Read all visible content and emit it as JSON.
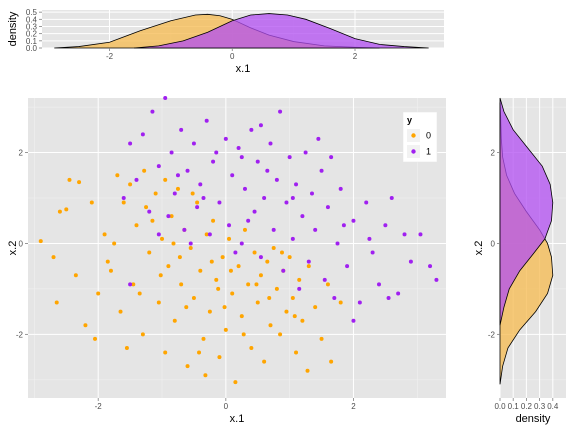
{
  "colors": {
    "panel_bg": "#e5e5e5",
    "grid_major": "#ffffff",
    "grid_minor": "#f2f2f2",
    "class0": "#ffa500",
    "class1": "#a020f0",
    "class0_fill": "#f5b94d",
    "class1_fill": "#b14ef2"
  },
  "chart_data": [
    {
      "id": "top-density",
      "type": "area",
      "xlabel": "x.1",
      "ylabel": "density",
      "xlim": [
        -3.1,
        3.45
      ],
      "ylim": [
        0,
        0.53
      ],
      "xticks": [
        -2,
        0,
        2
      ],
      "xtick_labels": [
        "-2",
        "0",
        "2"
      ],
      "yticks": [
        0.0,
        0.1,
        0.2,
        0.3,
        0.4,
        0.5
      ],
      "ytick_labels": [
        "0.0",
        "0.1",
        "0.2",
        "0.3",
        "0.4",
        "0.5"
      ],
      "series": [
        {
          "name": "0",
          "x": [
            -2.9,
            -2.5,
            -2.0,
            -1.5,
            -1.0,
            -0.6,
            -0.4,
            -0.2,
            0.0,
            0.3,
            0.6,
            1.0,
            1.5,
            2.0,
            2.4
          ],
          "density": [
            0.0,
            0.02,
            0.08,
            0.24,
            0.38,
            0.46,
            0.47,
            0.45,
            0.4,
            0.28,
            0.18,
            0.09,
            0.03,
            0.01,
            0.0
          ]
        },
        {
          "name": "1",
          "x": [
            -1.6,
            -1.2,
            -0.8,
            -0.4,
            0.0,
            0.3,
            0.6,
            0.9,
            1.2,
            1.6,
            2.0,
            2.4,
            2.8,
            3.2
          ],
          "density": [
            0.0,
            0.03,
            0.1,
            0.22,
            0.38,
            0.46,
            0.48,
            0.46,
            0.4,
            0.27,
            0.13,
            0.05,
            0.02,
            0.0
          ]
        }
      ]
    },
    {
      "id": "main-scatter",
      "type": "scatter",
      "xlabel": "x.1",
      "ylabel": "x.2",
      "xlim": [
        -3.1,
        3.45
      ],
      "ylim": [
        -3.4,
        3.2
      ],
      "xticks": [
        -2,
        0,
        2
      ],
      "xtick_labels": [
        "-2",
        "0",
        "2"
      ],
      "yticks": [
        -2,
        0,
        2
      ],
      "ytick_labels": [
        "-2",
        "0",
        "2"
      ],
      "legend": {
        "title": "y",
        "position": "top-right",
        "entries": [
          "0",
          "1"
        ]
      },
      "series": [
        {
          "name": "0",
          "points": [
            [
              -2.9,
              0.05
            ],
            [
              -2.7,
              -0.3
            ],
            [
              -2.65,
              -1.3
            ],
            [
              -2.6,
              0.7
            ],
            [
              -2.5,
              0.75
            ],
            [
              -2.45,
              1.4
            ],
            [
              -2.3,
              1.35
            ],
            [
              -2.2,
              -1.8
            ],
            [
              -2.1,
              0.9
            ],
            [
              -2.0,
              -1.1
            ],
            [
              -1.9,
              0.2
            ],
            [
              -1.8,
              -0.6
            ],
            [
              -1.7,
              1.5
            ],
            [
              -1.65,
              -1.5
            ],
            [
              -1.5,
              1.3
            ],
            [
              -1.45,
              -0.9
            ],
            [
              -1.4,
              0.4
            ],
            [
              -1.3,
              -2.0
            ],
            [
              -1.25,
              0.8
            ],
            [
              -1.2,
              -0.2
            ],
            [
              -1.1,
              1.1
            ],
            [
              -1.05,
              -1.3
            ],
            [
              -1.0,
              0.1
            ],
            [
              -0.95,
              -2.4
            ],
            [
              -0.9,
              -0.5
            ],
            [
              -0.85,
              0.6
            ],
            [
              -0.8,
              -1.7
            ],
            [
              -0.75,
              1.2
            ],
            [
              -0.7,
              -0.9
            ],
            [
              -0.65,
              0.3
            ],
            [
              -0.6,
              -2.7
            ],
            [
              -0.55,
              -0.1
            ],
            [
              -0.5,
              -1.2
            ],
            [
              -0.45,
              0.9
            ],
            [
              -0.4,
              -0.6
            ],
            [
              -0.35,
              -2.1
            ],
            [
              -0.3,
              0.2
            ],
            [
              -0.25,
              -1.5
            ],
            [
              -0.2,
              0.5
            ],
            [
              -0.15,
              -0.8
            ],
            [
              -0.1,
              -2.5
            ],
            [
              -0.05,
              -0.3
            ],
            [
              0.0,
              -1.9
            ],
            [
              0.05,
              0.1
            ],
            [
              0.1,
              -1.1
            ],
            [
              0.15,
              -3.05
            ],
            [
              0.2,
              -0.5
            ],
            [
              0.25,
              -1.6
            ],
            [
              0.3,
              0.3
            ],
            [
              0.35,
              -0.9
            ],
            [
              0.4,
              -2.3
            ],
            [
              0.45,
              -0.2
            ],
            [
              0.5,
              -1.3
            ],
            [
              0.55,
              -0.7
            ],
            [
              0.6,
              -2.6
            ],
            [
              0.65,
              -0.4
            ],
            [
              0.7,
              -1.8
            ],
            [
              0.75,
              -0.1
            ],
            [
              0.8,
              -1.0
            ],
            [
              0.85,
              -2.0
            ],
            [
              0.9,
              -0.6
            ],
            [
              0.95,
              -1.5
            ],
            [
              1.0,
              -0.3
            ],
            [
              1.05,
              -1.2
            ],
            [
              1.1,
              -2.4
            ],
            [
              1.15,
              -0.8
            ],
            [
              1.2,
              -1.7
            ],
            [
              1.3,
              -0.5
            ],
            [
              1.4,
              -1.4
            ],
            [
              1.5,
              -2.1
            ],
            [
              1.6,
              -0.9
            ],
            [
              1.65,
              -2.6
            ],
            [
              1.8,
              -1.3
            ],
            [
              -1.85,
              -0.4
            ],
            [
              -1.6,
              0.9
            ],
            [
              -1.35,
              -1.1
            ],
            [
              -1.15,
              0.5
            ],
            [
              -0.95,
              1.4
            ],
            [
              -0.72,
              -0.3
            ],
            [
              -0.52,
              1.1
            ],
            [
              -0.32,
              -2.9
            ],
            [
              -0.12,
              -1.0
            ],
            [
              0.08,
              -0.6
            ],
            [
              0.28,
              -2.0
            ],
            [
              0.48,
              -0.9
            ],
            [
              0.68,
              -1.2
            ],
            [
              0.88,
              -0.2
            ],
            [
              1.08,
              -1.6
            ],
            [
              1.28,
              -2.8
            ],
            [
              -2.35,
              -0.7
            ],
            [
              -2.05,
              -2.1
            ],
            [
              -1.75,
              0.0
            ],
            [
              -1.55,
              -2.3
            ],
            [
              -1.28,
              1.6
            ],
            [
              -1.02,
              -0.7
            ],
            [
              -0.82,
              0.0
            ],
            [
              -0.62,
              -1.4
            ],
            [
              -0.42,
              -2.4
            ],
            [
              -0.22,
              -0.4
            ],
            [
              -0.02,
              -1.4
            ]
          ]
        },
        {
          "name": "1",
          "points": [
            [
              -1.6,
              1.0
            ],
            [
              -1.5,
              2.2
            ],
            [
              -1.5,
              -0.9
            ],
            [
              -1.4,
              1.4
            ],
            [
              -1.3,
              2.4
            ],
            [
              -1.2,
              0.7
            ],
            [
              -1.15,
              2.9
            ],
            [
              -1.05,
              1.7
            ],
            [
              -0.95,
              3.2
            ],
            [
              -0.9,
              0.6
            ],
            [
              -0.85,
              2.0
            ],
            [
              -0.8,
              1.1
            ],
            [
              -0.7,
              2.5
            ],
            [
              -0.65,
              0.3
            ],
            [
              -0.6,
              1.6
            ],
            [
              -0.5,
              2.2
            ],
            [
              -0.45,
              0.8
            ],
            [
              -0.4,
              1.3
            ],
            [
              -0.3,
              2.7
            ],
            [
              -0.25,
              0.2
            ],
            [
              -0.2,
              1.8
            ],
            [
              -0.1,
              0.9
            ],
            [
              0.0,
              2.3
            ],
            [
              0.05,
              0.4
            ],
            [
              0.1,
              1.5
            ],
            [
              0.2,
              2.1
            ],
            [
              0.25,
              0.0
            ],
            [
              0.3,
              1.2
            ],
            [
              0.4,
              2.5
            ],
            [
              0.45,
              0.7
            ],
            [
              0.5,
              1.8
            ],
            [
              0.55,
              -0.3
            ],
            [
              0.6,
              1.0
            ],
            [
              0.7,
              2.2
            ],
            [
              0.75,
              0.3
            ],
            [
              0.8,
              1.4
            ],
            [
              0.85,
              2.9
            ],
            [
              0.9,
              -0.6
            ],
            [
              0.95,
              0.9
            ],
            [
              1.0,
              1.9
            ],
            [
              1.05,
              0.1
            ],
            [
              1.1,
              1.3
            ],
            [
              1.15,
              -1.0
            ],
            [
              1.2,
              0.6
            ],
            [
              1.25,
              2.0
            ],
            [
              1.3,
              -0.4
            ],
            [
              1.35,
              1.1
            ],
            [
              1.4,
              0.3
            ],
            [
              1.5,
              1.6
            ],
            [
              1.55,
              -0.8
            ],
            [
              1.6,
              0.8
            ],
            [
              1.7,
              -1.2
            ],
            [
              1.75,
              0.0
            ],
            [
              1.8,
              1.2
            ],
            [
              1.9,
              -0.5
            ],
            [
              2.0,
              0.5
            ],
            [
              2.1,
              -1.3
            ],
            [
              2.2,
              0.9
            ],
            [
              2.3,
              -0.2
            ],
            [
              2.4,
              -0.9
            ],
            [
              2.5,
              0.4
            ],
            [
              2.6,
              1.0
            ],
            [
              2.7,
              -1.1
            ],
            [
              2.8,
              0.2
            ],
            [
              2.9,
              -0.4
            ],
            [
              3.05,
              0.2
            ],
            [
              3.2,
              -0.5
            ],
            [
              3.3,
              -0.8
            ],
            [
              2.0,
              -1.7
            ],
            [
              2.55,
              -1.2
            ],
            [
              -1.05,
              0.2
            ],
            [
              -0.55,
              0.0
            ],
            [
              0.15,
              -0.2
            ],
            [
              0.35,
              0.5
            ],
            [
              0.65,
              1.6
            ],
            [
              1.45,
              2.3
            ],
            [
              1.65,
              1.9
            ],
            [
              0.55,
              2.6
            ],
            [
              -0.15,
              2.0
            ],
            [
              -0.75,
              1.5
            ],
            [
              1.85,
              0.4
            ],
            [
              2.25,
              0.1
            ],
            [
              1.05,
              1.0
            ],
            [
              0.25,
              1.9
            ],
            [
              -0.35,
              1.0
            ]
          ]
        }
      ]
    },
    {
      "id": "right-density",
      "type": "area",
      "xlabel": "density",
      "ylabel": "x.2",
      "xlim": [
        0,
        0.5
      ],
      "ylim": [
        -3.4,
        3.2
      ],
      "xticks": [
        0.0,
        0.1,
        0.2,
        0.3,
        0.4
      ],
      "xtick_labels": [
        "0.0",
        "0.1",
        "0.2",
        "0.3",
        "0.4"
      ],
      "yticks": [
        -2,
        0,
        2
      ],
      "ytick_labels": [
        "-2",
        "0",
        "2"
      ],
      "series": [
        {
          "name": "0",
          "y": [
            -3.1,
            -2.7,
            -2.3,
            -1.9,
            -1.5,
            -1.1,
            -0.7,
            -0.3,
            0.0,
            0.3,
            0.7,
            1.1,
            1.5,
            1.9,
            2.3,
            2.8,
            3.1
          ],
          "density": [
            0.0,
            0.02,
            0.06,
            0.15,
            0.27,
            0.36,
            0.4,
            0.39,
            0.36,
            0.3,
            0.2,
            0.11,
            0.05,
            0.02,
            0.01,
            0.005,
            0.0
          ]
        },
        {
          "name": "1",
          "y": [
            -1.8,
            -1.4,
            -1.0,
            -0.6,
            -0.2,
            0.1,
            0.5,
            0.9,
            1.3,
            1.7,
            2.1,
            2.5,
            2.9,
            3.2
          ],
          "density": [
            0.0,
            0.03,
            0.07,
            0.15,
            0.26,
            0.34,
            0.39,
            0.4,
            0.38,
            0.32,
            0.21,
            0.1,
            0.03,
            0.0
          ]
        }
      ]
    }
  ]
}
